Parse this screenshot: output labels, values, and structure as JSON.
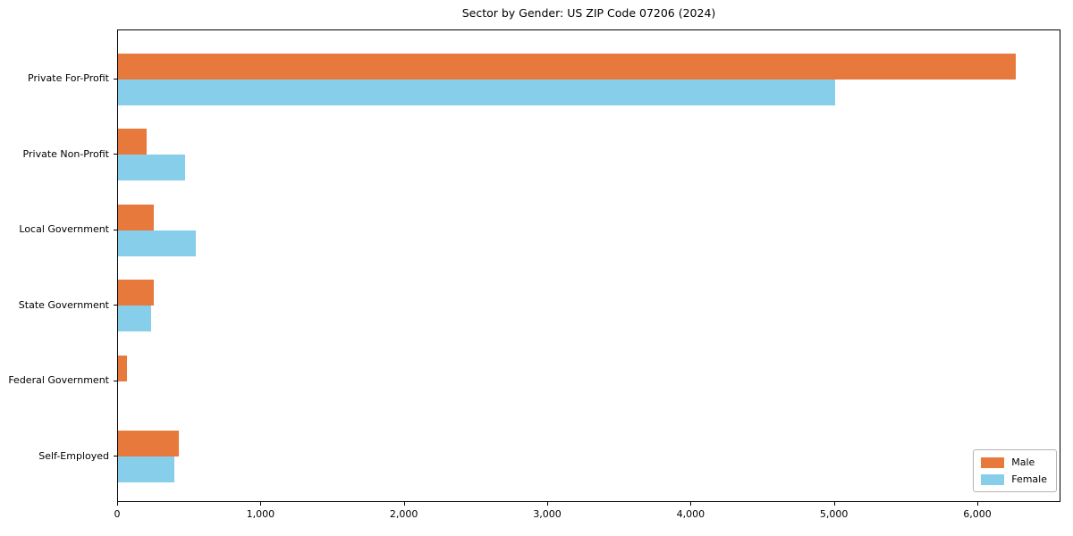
{
  "chart_data": {
    "type": "bar",
    "orientation": "horizontal",
    "title": "Sector by Gender: US ZIP Code 07206 (2024)",
    "categories": [
      "Private For-Profit",
      "Private Non-Profit",
      "Local Government",
      "State Government",
      "Federal Government",
      "Self-Employed"
    ],
    "series": [
      {
        "name": "Male",
        "color": "#e8793d",
        "values": [
          6260,
          200,
          250,
          250,
          60,
          425
        ]
      },
      {
        "name": "Female",
        "color": "#87ceeb",
        "values": [
          5000,
          470,
          540,
          230,
          0,
          390
        ]
      }
    ],
    "xlabel": "",
    "ylabel": "",
    "xlim": [
      0,
      6580
    ],
    "x_ticks": [
      0,
      1000,
      2000,
      3000,
      4000,
      5000,
      6000
    ],
    "x_tick_labels": [
      "0",
      "1,000",
      "2,000",
      "3,000",
      "4,000",
      "5,000",
      "6,000"
    ],
    "legend": {
      "position": "lower right",
      "entries": [
        "Male",
        "Female"
      ]
    },
    "grid": false,
    "background_color": "#ffffff",
    "axis_color": "#000000"
  }
}
